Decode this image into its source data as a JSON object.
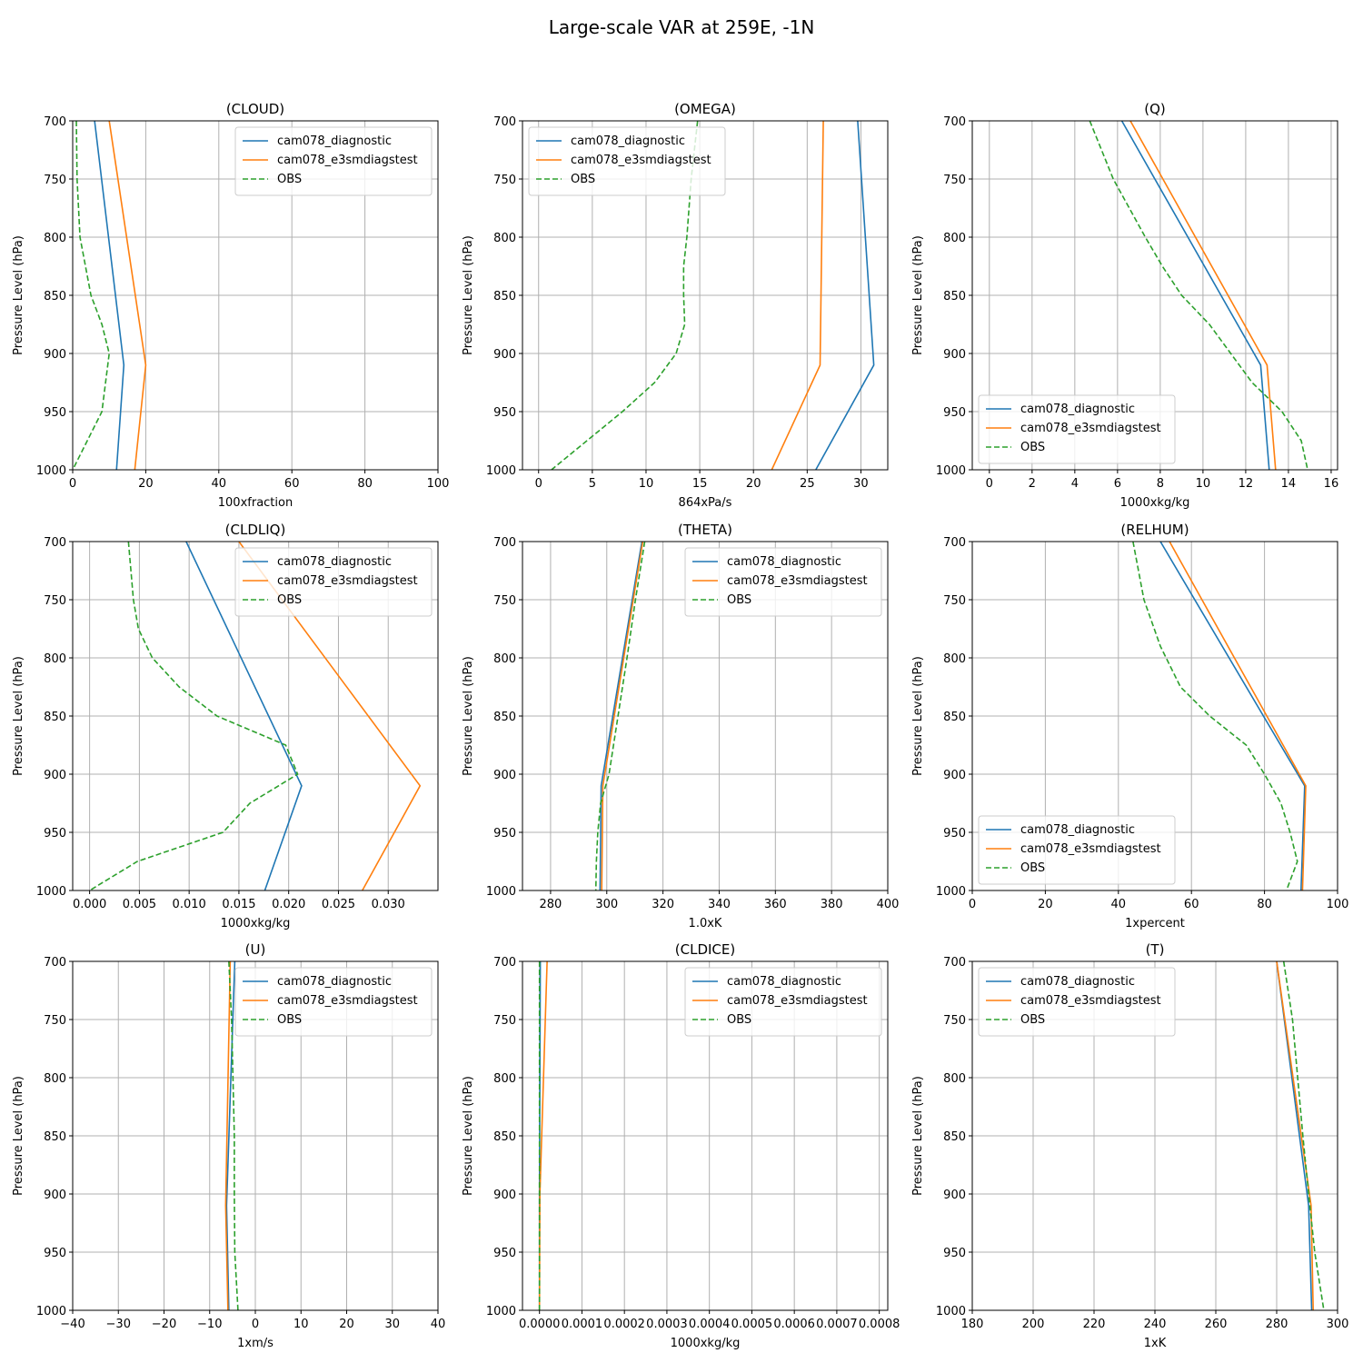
{
  "figure": {
    "title": "Large-scale VAR at 259E, -1N"
  },
  "colors": {
    "cam078_diagnostic": "#1f77b4",
    "cam078_e3smdiagstest": "#ff7f0e",
    "OBS": "#2ca02c"
  },
  "chart_data": [
    {
      "type": "line",
      "title": "(CLOUD)",
      "xlabel": "100xfraction",
      "ylabel": "Pressure Level (hPa)",
      "xlim": [
        0,
        100
      ],
      "ylim": [
        1000,
        700
      ],
      "y_inverted": true,
      "grid": true,
      "legend": "upper-right",
      "xticks": [
        0,
        20,
        40,
        60,
        80,
        100
      ],
      "xtick_labels": [
        "0",
        "20",
        "40",
        "60",
        "80",
        "100"
      ],
      "yticks": [
        700,
        750,
        800,
        850,
        900,
        950,
        1000
      ],
      "series": [
        {
          "name": "cam078_diagnostic",
          "style": "solid",
          "x": [
            6,
            14,
            12
          ],
          "y": [
            700,
            910,
            1000
          ]
        },
        {
          "name": "cam078_e3smdiagstest",
          "style": "solid",
          "x": [
            10,
            20,
            17
          ],
          "y": [
            700,
            910,
            1000
          ]
        },
        {
          "name": "OBS",
          "style": "dashed",
          "x": [
            1,
            1.2,
            2,
            3.5,
            5,
            8,
            10,
            8,
            4,
            0
          ],
          "y": [
            700,
            750,
            800,
            825,
            850,
            875,
            900,
            950,
            975,
            1000
          ]
        }
      ]
    },
    {
      "type": "line",
      "title": "(OMEGA)",
      "xlabel": "864xPa/s",
      "ylabel": "Pressure Level (hPa)",
      "xlim": [
        -1.5,
        32.5
      ],
      "ylim": [
        1000,
        700
      ],
      "y_inverted": true,
      "grid": true,
      "legend": "upper-left",
      "xticks": [
        0,
        5,
        10,
        15,
        20,
        25,
        30
      ],
      "xtick_labels": [
        "0",
        "5",
        "10",
        "15",
        "20",
        "25",
        "30"
      ],
      "yticks": [
        700,
        750,
        800,
        850,
        900,
        950,
        1000
      ],
      "series": [
        {
          "name": "cam078_diagnostic",
          "style": "solid",
          "x": [
            29.7,
            31.2,
            25.8
          ],
          "y": [
            700,
            910,
            1000
          ]
        },
        {
          "name": "cam078_e3smdiagstest",
          "style": "solid",
          "x": [
            26.5,
            26.2,
            21.7
          ],
          "y": [
            700,
            910,
            1000
          ]
        },
        {
          "name": "OBS",
          "style": "dashed",
          "x": [
            14.8,
            14.2,
            13.8,
            13.5,
            13.5,
            13.6,
            12.8,
            10.8,
            7.8,
            4.5,
            1.2
          ],
          "y": [
            700,
            750,
            800,
            825,
            850,
            875,
            900,
            925,
            950,
            975,
            1000
          ]
        }
      ]
    },
    {
      "type": "line",
      "title": "(Q)",
      "xlabel": "1000xkg/kg",
      "ylabel": "Pressure Level (hPa)",
      "xlim": [
        -0.8,
        16.3
      ],
      "ylim": [
        1000,
        700
      ],
      "y_inverted": true,
      "grid": true,
      "legend": "lower-left",
      "xticks": [
        0,
        2,
        4,
        6,
        8,
        10,
        12,
        14,
        16
      ],
      "xtick_labels": [
        "0",
        "2",
        "4",
        "6",
        "8",
        "10",
        "12",
        "14",
        "16"
      ],
      "yticks": [
        700,
        750,
        800,
        850,
        900,
        950,
        1000
      ],
      "series": [
        {
          "name": "cam078_diagnostic",
          "style": "solid",
          "x": [
            6.2,
            12.7,
            13.1
          ],
          "y": [
            700,
            910,
            1000
          ]
        },
        {
          "name": "cam078_e3smdiagstest",
          "style": "solid",
          "x": [
            6.6,
            13.0,
            13.4
          ],
          "y": [
            700,
            910,
            1000
          ]
        },
        {
          "name": "OBS",
          "style": "dashed",
          "x": [
            4.7,
            5.8,
            7.3,
            8.1,
            9.0,
            10.3,
            11.3,
            12.3,
            13.7,
            14.6,
            14.9
          ],
          "y": [
            700,
            750,
            800,
            825,
            850,
            875,
            900,
            925,
            950,
            975,
            1000
          ]
        }
      ]
    },
    {
      "type": "line",
      "title": "(CLDLIQ)",
      "xlabel": "1000xkg/kg",
      "ylabel": "Pressure Level (hPa)",
      "xlim": [
        -0.0017,
        0.035
      ],
      "ylim": [
        1000,
        700
      ],
      "y_inverted": true,
      "grid": true,
      "legend": "upper-right",
      "xticks": [
        0,
        0.005,
        0.01,
        0.015,
        0.02,
        0.025,
        0.03
      ],
      "xtick_labels": [
        "0.000",
        "0.005",
        "0.010",
        "0.015",
        "0.020",
        "0.025",
        "0.030"
      ],
      "yticks": [
        700,
        750,
        800,
        850,
        900,
        950,
        1000
      ],
      "series": [
        {
          "name": "cam078_diagnostic",
          "style": "solid",
          "x": [
            0.0097,
            0.0213,
            0.0176
          ],
          "y": [
            700,
            910,
            1000
          ]
        },
        {
          "name": "cam078_e3smdiagstest",
          "style": "solid",
          "x": [
            0.015,
            0.0332,
            0.0274
          ],
          "y": [
            700,
            910,
            1000
          ]
        },
        {
          "name": "OBS",
          "style": "dashed",
          "x": [
            0.0039,
            0.0044,
            0.0049,
            0.0063,
            0.009,
            0.0128,
            0.0197,
            0.0209,
            0.0161,
            0.0134,
            0.0048,
            0.0
          ],
          "y": [
            700,
            750,
            775,
            800,
            825,
            850,
            875,
            900,
            925,
            950,
            975,
            1000
          ]
        }
      ]
    },
    {
      "type": "line",
      "title": "(THETA)",
      "xlabel": "1.0xK",
      "ylabel": "Pressure Level (hPa)",
      "xlim": [
        270,
        400
      ],
      "ylim": [
        1000,
        700
      ],
      "y_inverted": true,
      "grid": true,
      "legend": "upper-right",
      "xticks": [
        280,
        300,
        320,
        340,
        360,
        380,
        400
      ],
      "xtick_labels": [
        "280",
        "300",
        "320",
        "340",
        "360",
        "380",
        "400"
      ],
      "yticks": [
        700,
        750,
        800,
        850,
        900,
        950,
        1000
      ],
      "series": [
        {
          "name": "cam078_diagnostic",
          "style": "solid",
          "x": [
            312.5,
            298.0,
            297.6
          ],
          "y": [
            700,
            910,
            1000
          ]
        },
        {
          "name": "cam078_e3smdiagstest",
          "style": "solid",
          "x": [
            312.8,
            298.6,
            298.2
          ],
          "y": [
            700,
            910,
            1000
          ]
        },
        {
          "name": "OBS",
          "style": "dashed",
          "x": [
            313.5,
            310.2,
            307.2,
            304.0,
            300.8,
            297.8,
            296.8,
            296.3,
            296.1
          ],
          "y": [
            700,
            750,
            800,
            850,
            900,
            925,
            950,
            975,
            1000
          ]
        }
      ]
    },
    {
      "type": "line",
      "title": "(RELHUM)",
      "xlabel": "1xpercent",
      "ylabel": "Pressure Level (hPa)",
      "xlim": [
        0,
        100
      ],
      "ylim": [
        1000,
        700
      ],
      "y_inverted": true,
      "grid": true,
      "legend": "lower-left",
      "xticks": [
        0,
        20,
        40,
        60,
        80,
        100
      ],
      "xtick_labels": [
        "0",
        "20",
        "40",
        "60",
        "80",
        "100"
      ],
      "yticks": [
        700,
        750,
        800,
        850,
        900,
        950,
        1000
      ],
      "series": [
        {
          "name": "cam078_diagnostic",
          "style": "solid",
          "x": [
            51.5,
            91.0,
            90.0
          ],
          "y": [
            700,
            910,
            1000
          ]
        },
        {
          "name": "cam078_e3smdiagstest",
          "style": "solid",
          "x": [
            54.0,
            91.3,
            90.4
          ],
          "y": [
            700,
            910,
            1000
          ]
        },
        {
          "name": "OBS",
          "style": "dashed",
          "x": [
            44.0,
            47.0,
            51.5,
            57.0,
            65.0,
            75.0,
            80.0,
            84.5,
            87.0,
            89.0,
            86.0
          ],
          "y": [
            700,
            750,
            790,
            825,
            850,
            875,
            900,
            925,
            950,
            975,
            1000
          ]
        }
      ]
    },
    {
      "type": "line",
      "title": "(U)",
      "xlabel": "1xm/s",
      "ylabel": "Pressure Level (hPa)",
      "xlim": [
        -40,
        40
      ],
      "ylim": [
        1000,
        700
      ],
      "y_inverted": true,
      "grid": true,
      "legend": "upper-right",
      "xticks": [
        -40,
        -30,
        -20,
        -10,
        0,
        10,
        20,
        30,
        40
      ],
      "xtick_labels": [
        "−40",
        "−30",
        "−20",
        "−10",
        "0",
        "10",
        "20",
        "30",
        "40"
      ],
      "yticks": [
        700,
        750,
        800,
        850,
        900,
        950,
        1000
      ],
      "series": [
        {
          "name": "cam078_diagnostic",
          "style": "solid",
          "x": [
            -4.5,
            -6.3,
            -5.8
          ],
          "y": [
            700,
            910,
            1000
          ]
        },
        {
          "name": "cam078_e3smdiagstest",
          "style": "solid",
          "x": [
            -5.5,
            -6.5,
            -6.0
          ],
          "y": [
            700,
            910,
            1000
          ]
        },
        {
          "name": "OBS",
          "style": "dashed",
          "x": [
            -5.8,
            -5.2,
            -4.9,
            -4.6,
            -4.6,
            -4.5,
            -3.8
          ],
          "y": [
            700,
            750,
            800,
            850,
            900,
            950,
            1000
          ]
        }
      ]
    },
    {
      "type": "line",
      "title": "(CLDICE)",
      "xlabel": "1000xkg/kg",
      "ylabel": "Pressure Level (hPa)",
      "xlim": [
        -4e-05,
        0.00082
      ],
      "ylim": [
        1000,
        700
      ],
      "y_inverted": true,
      "grid": true,
      "legend": "upper-right",
      "xticks": [
        0,
        0.0001,
        0.0002,
        0.0003,
        0.0004,
        0.0005,
        0.0006,
        0.0007,
        0.0008
      ],
      "xtick_labels": [
        "0.0000",
        "0.0001",
        "0.0002",
        "0.0003",
        "0.0004",
        "0.0005",
        "0.0006",
        "0.0007",
        "0.0008"
      ],
      "yticks": [
        700,
        750,
        800,
        850,
        900,
        950,
        1000
      ],
      "series": [
        {
          "name": "cam078_diagnostic",
          "style": "solid",
          "x": [
            2e-06,
            0.0,
            0.0
          ],
          "y": [
            700,
            900,
            1000
          ]
        },
        {
          "name": "cam078_e3smdiagstest",
          "style": "solid",
          "x": [
            1.8e-05,
            1e-06,
            0.0
          ],
          "y": [
            700,
            900,
            1000
          ]
        },
        {
          "name": "OBS",
          "style": "dashed",
          "x": [
            0.0,
            0.0,
            0.0
          ],
          "y": [
            700,
            850,
            1000
          ]
        }
      ]
    },
    {
      "type": "line",
      "title": "(T)",
      "xlabel": "1xK",
      "ylabel": "Pressure Level (hPa)",
      "xlim": [
        180,
        300
      ],
      "ylim": [
        1000,
        700
      ],
      "y_inverted": true,
      "grid": true,
      "legend": "upper-left",
      "xticks": [
        180,
        200,
        220,
        240,
        260,
        280,
        300
      ],
      "xtick_labels": [
        "180",
        "200",
        "220",
        "240",
        "260",
        "280",
        "300"
      ],
      "yticks": [
        700,
        750,
        800,
        850,
        900,
        950,
        1000
      ],
      "series": [
        {
          "name": "cam078_diagnostic",
          "style": "solid",
          "x": [
            280.0,
            290.5,
            291.5
          ],
          "y": [
            700,
            910,
            1000
          ]
        },
        {
          "name": "cam078_e3smdiagstest",
          "style": "solid",
          "x": [
            280.0,
            291.3,
            292.0
          ],
          "y": [
            700,
            910,
            1000
          ]
        },
        {
          "name": "OBS",
          "style": "dashed",
          "x": [
            282.3,
            285.2,
            286.9,
            288.6,
            290.5,
            292.5,
            295.5
          ],
          "y": [
            700,
            750,
            800,
            850,
            900,
            950,
            1000
          ]
        }
      ]
    }
  ]
}
